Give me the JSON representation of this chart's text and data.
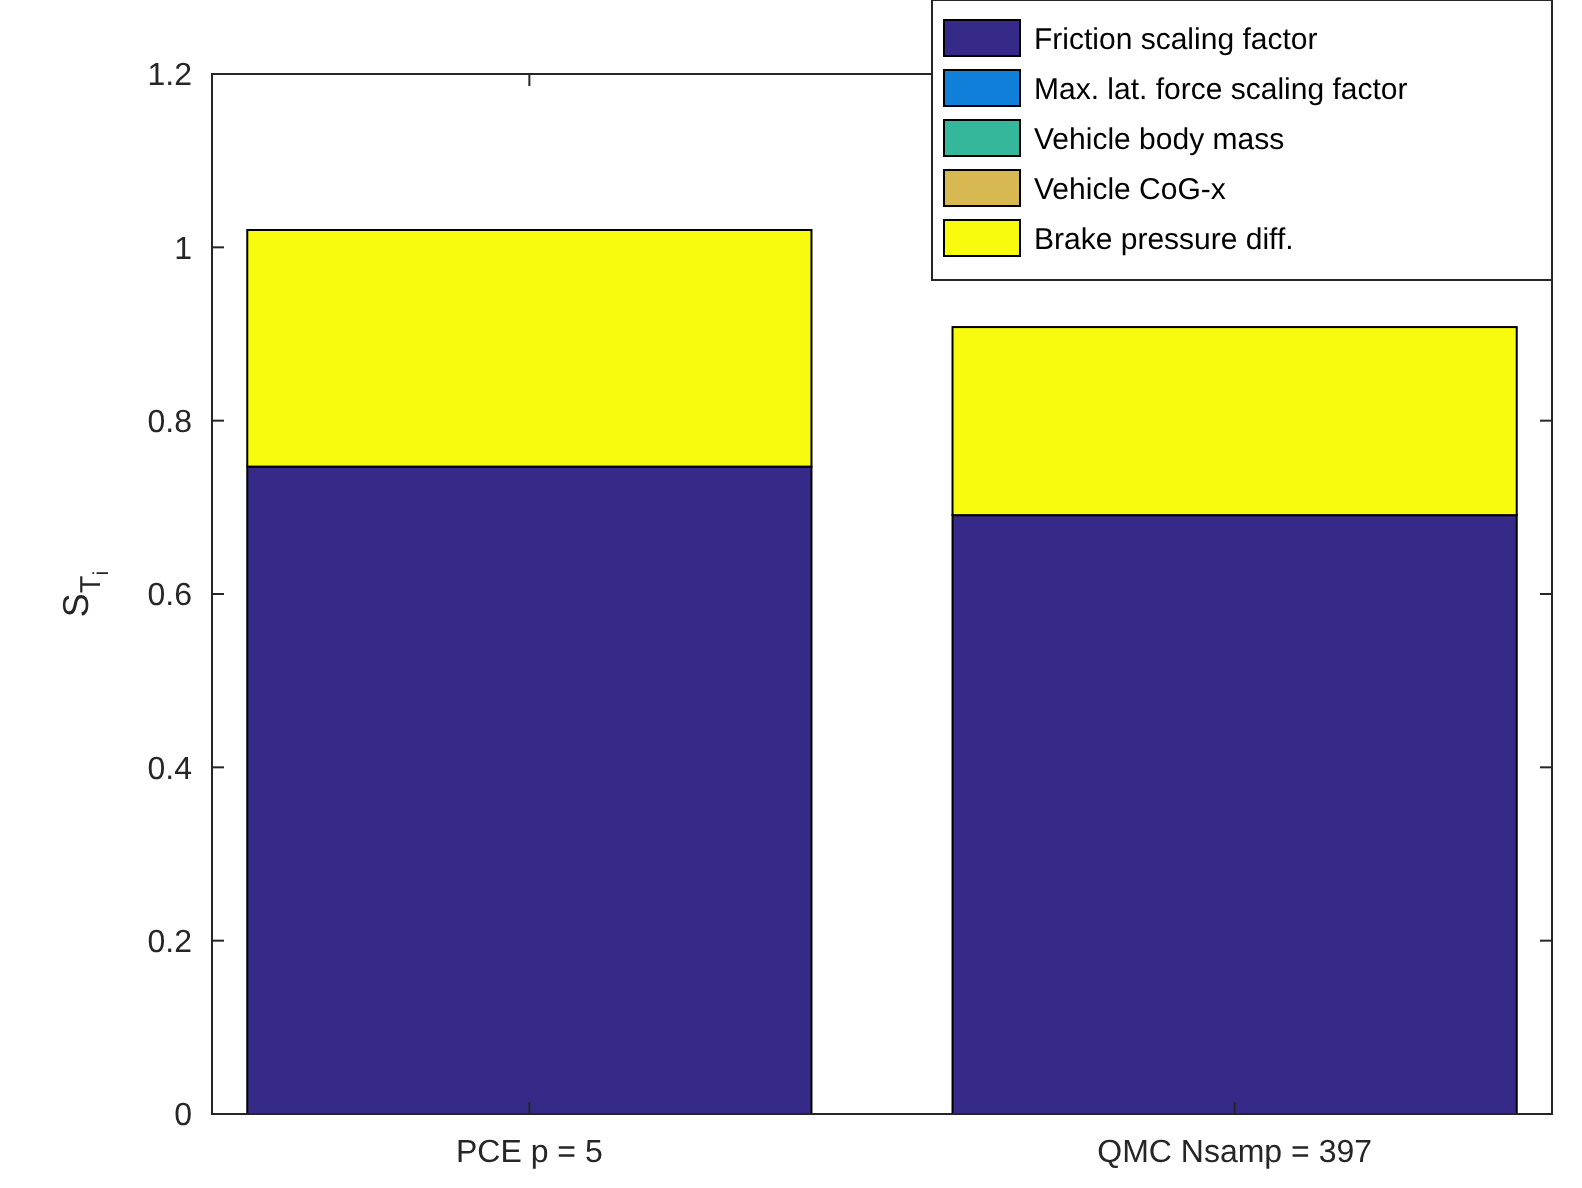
{
  "chart_data": {
    "type": "bar",
    "stacked": true,
    "ylabel": "S$_{T}$$_{i}$",
    "categories": [
      "PCE p = 5",
      "QMC Nsamp = 397"
    ],
    "series": [
      {
        "name": "Friction scaling factor",
        "color": "#352a87",
        "values": [
          0.747,
          0.691
        ]
      },
      {
        "name": "Max. lat. force scaling factor",
        "color": "#0f7fd9",
        "values": [
          0,
          0
        ]
      },
      {
        "name": "Vehicle body mass",
        "color": "#35b79b",
        "values": [
          0,
          0
        ]
      },
      {
        "name": "Vehicle CoG-x",
        "color": "#d8b850",
        "values": [
          0,
          0
        ]
      },
      {
        "name": "Brake pressure diff.",
        "color": "#f9fb0e",
        "values": [
          0.273,
          0.217
        ]
      }
    ],
    "ylim": [
      0,
      1.2
    ],
    "yticks": [
      0,
      0.2,
      0.4,
      0.6,
      0.8,
      1,
      1.2
    ],
    "grid": false,
    "legend": "top right"
  }
}
